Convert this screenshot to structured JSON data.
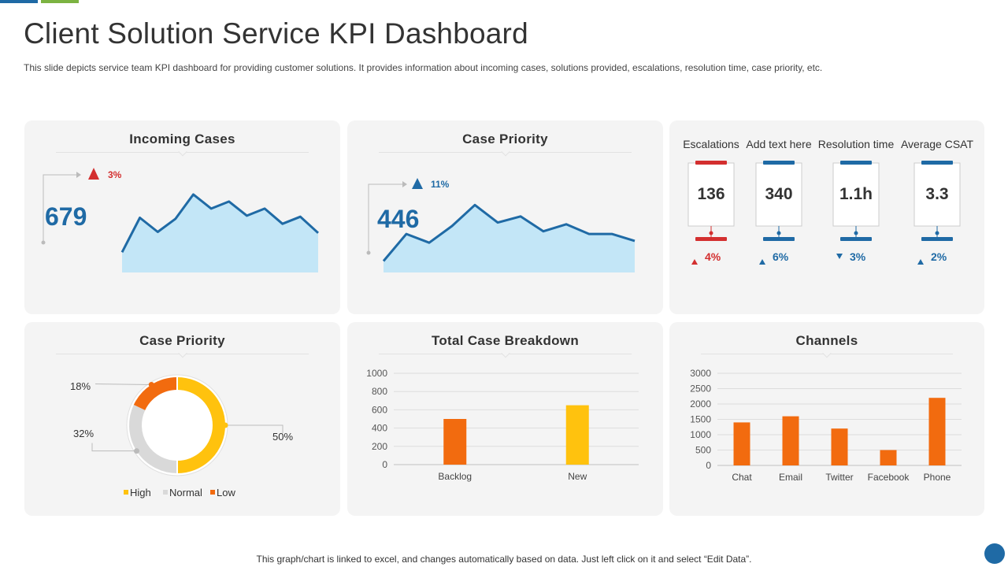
{
  "title": "Client Solution Service KPI Dashboard",
  "subtitle": "This slide depicts service team KPI dashboard for providing customer solutions. It provides information about incoming cases, solutions provided, escalations, resolution time, case priority, etc.",
  "footer": "This graph/chart is linked to excel,  and changes automatically based on data. Just left click on it and select “Edit Data”.",
  "colors": {
    "blue": "#1f6aa5",
    "red": "#d32f2f",
    "area_fill": "#c3e6f7",
    "orange": "#f26b0f",
    "yellow": "#ffc20e",
    "grey": "#d9d9d9",
    "accent_green": "#7cb342"
  },
  "incoming_cases": {
    "title": "Incoming  Cases",
    "value": "679",
    "change": "3%",
    "change_direction": "up",
    "change_color": "#d32f2f"
  },
  "case_priority_trend": {
    "title": "Case Priority",
    "value": "446",
    "change": "11%",
    "change_direction": "up",
    "change_color": "#1f6aa5"
  },
  "kpis": [
    {
      "label": "Escalations",
      "value": "136",
      "change": "4%",
      "direction": "up",
      "color": "#d32f2f"
    },
    {
      "label": "Add text here",
      "value": "340",
      "change": "6%",
      "direction": "up",
      "color": "#1f6aa5"
    },
    {
      "label": "Resolution time",
      "value": "1.1h",
      "change": "3%",
      "direction": "down",
      "color": "#1f6aa5"
    },
    {
      "label": "Average  CSAT",
      "value": "3.3",
      "change": "2%",
      "direction": "up",
      "color": "#1f6aa5"
    }
  ],
  "case_priority_donut": {
    "title": "Case Priority"
  },
  "total_case_breakdown": {
    "title": "Total Case Breakdown"
  },
  "channels": {
    "title": "Channels"
  },
  "chart_data": [
    {
      "type": "area",
      "chart": "incoming_cases",
      "values": [
        2,
        5.4,
        4,
        5.3,
        7.7,
        6.3,
        7,
        5.6,
        6.3,
        4.8,
        5.5,
        3.9
      ],
      "xlabel": "",
      "ylabel": ""
    },
    {
      "type": "area",
      "chart": "case_priority_trend",
      "values": [
        1.3,
        4.4,
        3.4,
        5.3,
        7.7,
        5.7,
        6.4,
        4.7,
        5.5,
        4.4,
        4.4,
        3.6
      ],
      "xlabel": "",
      "ylabel": ""
    },
    {
      "type": "pie",
      "chart": "case_priority_donut",
      "donut": true,
      "categories": [
        "High",
        "Normal",
        "Low"
      ],
      "values": [
        50,
        32,
        18
      ],
      "labels": [
        "50%",
        "32%",
        "18%"
      ],
      "colors": [
        "#ffc20e",
        "#d9d9d9",
        "#f26b0f"
      ],
      "legend": "bottom"
    },
    {
      "type": "bar",
      "chart": "total_case_breakdown",
      "categories": [
        "Backlog",
        "New"
      ],
      "values": [
        500,
        650
      ],
      "colors": [
        "#f26b0f",
        "#ffc20e"
      ],
      "ylim": [
        0,
        1000
      ],
      "yticks": [
        "0",
        "200",
        "400",
        "600",
        "800",
        "1000"
      ],
      "grid": true
    },
    {
      "type": "bar",
      "chart": "channels",
      "categories": [
        "Chat",
        "Email",
        "Twitter",
        "Facebook",
        "Phone"
      ],
      "values": [
        1400,
        1600,
        1200,
        500,
        2200
      ],
      "colors": [
        "#f26b0f",
        "#f26b0f",
        "#f26b0f",
        "#f26b0f",
        "#f26b0f"
      ],
      "ylim": [
        0,
        3000
      ],
      "yticks": [
        "0",
        "500",
        "1000",
        "1500",
        "2000",
        "2500",
        "3000"
      ],
      "grid": true
    }
  ]
}
